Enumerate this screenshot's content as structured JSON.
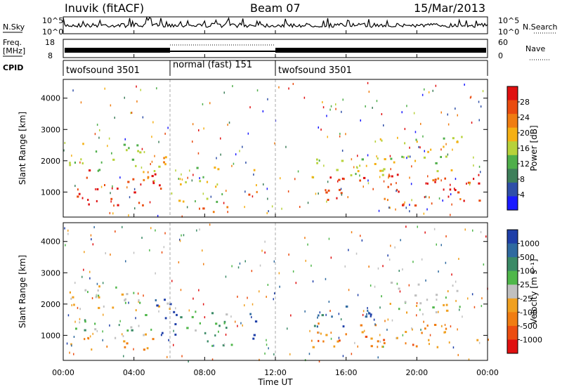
{
  "header": {
    "station": "Inuvik (fitACF)",
    "beam": "Beam 07",
    "date": "15/Mar/2013"
  },
  "noise_panel": {
    "left_label": "N.Sky",
    "right_label": "N.Search",
    "ticks_left": [
      "10^5",
      "10^0"
    ],
    "ticks_right": [
      "10^5",
      "10^0"
    ]
  },
  "freq_panel": {
    "left_label_1": "Freq.",
    "left_label_2": "[MHz]",
    "ticks_left": [
      "18",
      "8"
    ],
    "ticks_right": [
      "60",
      "0"
    ],
    "right_label": "Nave"
  },
  "cpid_panel": {
    "label": "CPID",
    "segments": [
      {
        "name": "twofsound 3501",
        "start": 0,
        "end": 6
      },
      {
        "name": "normal (fast) 151",
        "start": 6,
        "end": 12
      },
      {
        "name": "twofsound 3501",
        "start": 12,
        "end": 24
      }
    ]
  },
  "colors": {
    "power_scale": [
      "#1a1aff",
      "#2f4fa8",
      "#3e7f5a",
      "#4faf4a",
      "#b7d23a",
      "#f5b014",
      "#f07d12",
      "#ea4b0f",
      "#e01010"
    ],
    "velocity_scale": [
      "#1f3fa8",
      "#2f6aa0",
      "#3a8a66",
      "#4fb74a",
      "#c0c0c0",
      "#f0a020",
      "#f07d12",
      "#ec4d10",
      "#e01010"
    ]
  },
  "chart_data": [
    {
      "type": "heatmap",
      "name": "power",
      "ylabel": "Slant Range [km]",
      "xlabel": "",
      "xlim": [
        0,
        24
      ],
      "ylim": [
        200,
        4600
      ],
      "yticks": [
        "1000",
        "2000",
        "3000",
        "4000"
      ],
      "colorbar": {
        "label": "Power [dB]",
        "ticks": [
          "28",
          "24",
          "20",
          "16",
          "12",
          "8",
          "4"
        ],
        "range": [
          0,
          30
        ]
      },
      "regions": [
        {
          "x": [
            0.5,
            5.5
          ],
          "y": [
            600,
            1600
          ],
          "value": 28
        },
        {
          "x": [
            1.0,
            1.6
          ],
          "y": [
            1500,
            1800
          ],
          "value": 28
        },
        {
          "x": [
            0.3,
            4.5
          ],
          "y": [
            1700,
            2600
          ],
          "value": 14
        },
        {
          "x": [
            4.5,
            6.2
          ],
          "y": [
            900,
            2400
          ],
          "value": 18
        },
        {
          "x": [
            6.5,
            9.0
          ],
          "y": [
            700,
            2000
          ],
          "value": 16
        },
        {
          "x": [
            7.0,
            9.5
          ],
          "y": [
            300,
            700
          ],
          "value": 24
        },
        {
          "x": [
            10.3,
            11.0
          ],
          "y": [
            900,
            1900
          ],
          "value": 22
        },
        {
          "x": [
            14.5,
            24.0
          ],
          "y": [
            600,
            1600
          ],
          "value": 26
        },
        {
          "x": [
            14.0,
            18.5
          ],
          "y": [
            1400,
            2200
          ],
          "value": 14
        },
        {
          "x": [
            17.5,
            22.5
          ],
          "y": [
            1700,
            2800
          ],
          "value": 16
        }
      ]
    },
    {
      "type": "heatmap",
      "name": "velocity",
      "ylabel": "Slant Range [km]",
      "xlabel": "Time UT",
      "xlim": [
        0,
        24
      ],
      "ylim": [
        200,
        4600
      ],
      "xticks": [
        "00:00",
        "04:00",
        "08:00",
        "12:00",
        "16:00",
        "20:00",
        "00:00"
      ],
      "yticks": [
        "1000",
        "2000",
        "3000",
        "4000"
      ],
      "colorbar": {
        "label": "Velocity [m s⁻¹]",
        "ticks": [
          "1000",
          "500",
          "100",
          "25",
          "-25",
          "-100",
          "-500",
          "-1000"
        ],
        "range": [
          -1000,
          1000
        ]
      },
      "regions": [
        {
          "x": [
            0.3,
            5.5
          ],
          "y": [
            500,
            1100
          ],
          "value": -300
        },
        {
          "x": [
            0.5,
            5.0
          ],
          "y": [
            1100,
            1700
          ],
          "value": 200
        },
        {
          "x": [
            0.3,
            6.0
          ],
          "y": [
            1700,
            2600
          ],
          "value": 0
        },
        {
          "x": [
            5.0,
            6.5
          ],
          "y": [
            800,
            2200
          ],
          "value": 800
        },
        {
          "x": [
            6.5,
            9.5
          ],
          "y": [
            600,
            1800
          ],
          "value": 300
        },
        {
          "x": [
            10.3,
            11.0
          ],
          "y": [
            900,
            1900
          ],
          "value": 900
        },
        {
          "x": [
            14.0,
            24.0
          ],
          "y": [
            600,
            1500
          ],
          "value": -350
        },
        {
          "x": [
            14.0,
            18.0
          ],
          "y": [
            1300,
            2100
          ],
          "value": 600
        },
        {
          "x": [
            17.5,
            22.5
          ],
          "y": [
            1700,
            2800
          ],
          "value": 0
        }
      ]
    }
  ],
  "xaxis": {
    "label": "Time UT",
    "ticks": [
      "00:00",
      "04:00",
      "08:00",
      "12:00",
      "16:00",
      "20:00",
      "00:00"
    ]
  }
}
